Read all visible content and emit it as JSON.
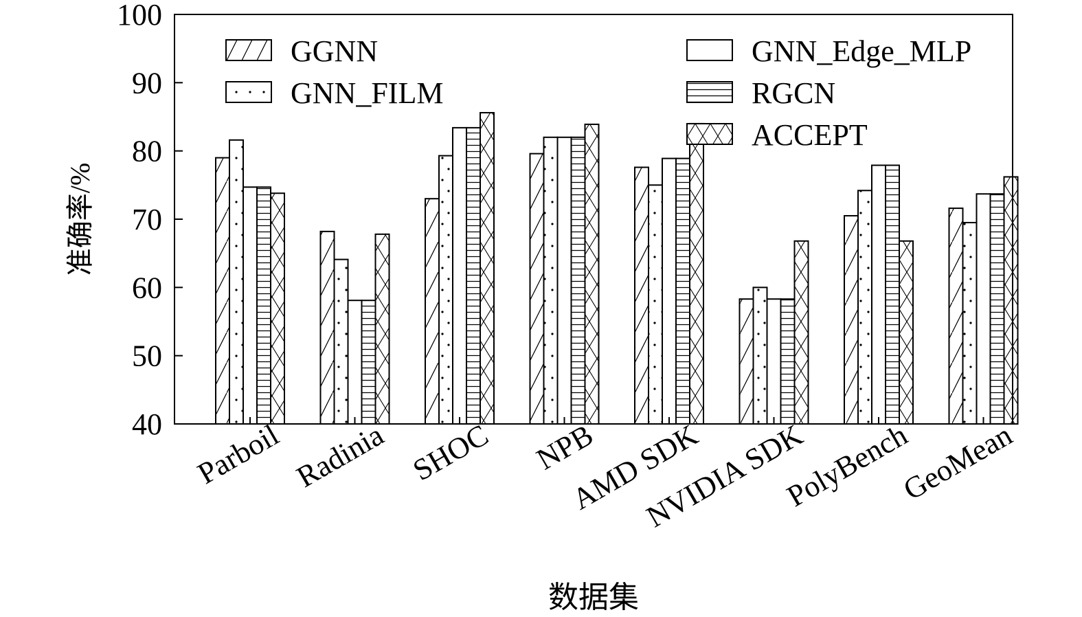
{
  "chart_data": {
    "type": "bar",
    "xlabel": "数据集",
    "ylabel": "准确率/%",
    "ylim": [
      40,
      100
    ],
    "yticks": [
      "40",
      "50",
      "60",
      "70",
      "80",
      "90",
      "100"
    ],
    "grid": false,
    "legend_position": "top",
    "categories": [
      "Parboil",
      "Radinia",
      "SHOC",
      "NPB",
      "AMD SDK",
      "NVIDIA SDK",
      "PolyBench",
      "GeoMean"
    ],
    "series": [
      {
        "name": "GGNN",
        "pattern": "diagonal-hatch",
        "values": [
          79.0,
          68.2,
          73.0,
          79.6,
          77.6,
          58.3,
          70.5,
          71.6
        ]
      },
      {
        "name": "GNN_FILM",
        "pattern": "dots",
        "values": [
          81.6,
          64.1,
          79.3,
          82.0,
          75.0,
          60.0,
          74.2,
          69.5
        ]
      },
      {
        "name": "GNN_Edge_MLP",
        "pattern": "empty",
        "values": [
          74.7,
          58.1,
          83.4,
          82.0,
          78.9,
          58.3,
          77.9,
          73.7
        ]
      },
      {
        "name": "RGCN",
        "pattern": "horizontal-lines",
        "values": [
          74.7,
          58.1,
          83.4,
          82.0,
          78.9,
          58.3,
          77.9,
          73.7
        ]
      },
      {
        "name": "ACCEPT",
        "pattern": "cross-hatch",
        "values": [
          73.8,
          67.8,
          85.6,
          83.9,
          84.0,
          66.8,
          66.8,
          76.2
        ]
      }
    ]
  }
}
